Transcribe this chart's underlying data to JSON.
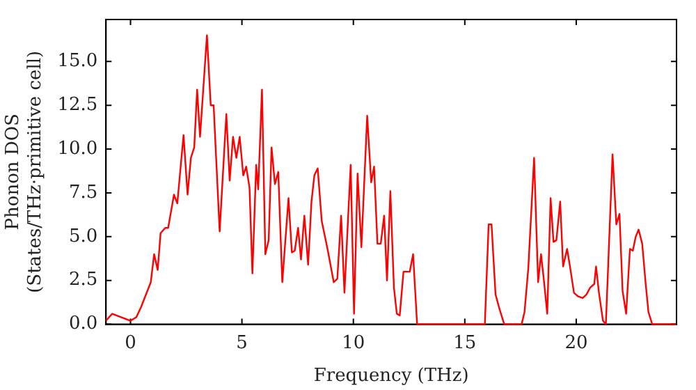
{
  "chart_data": {
    "type": "line",
    "xlabel": "Frequency (THz)",
    "ylabel": "Phonon DOS\n(States/THz·primitive cell)",
    "xlim": [
      -1.1,
      24.5
    ],
    "ylim": [
      0,
      17.4
    ],
    "xticks": [
      0,
      5,
      10,
      15,
      20
    ],
    "yticks": [
      {
        "value": 0,
        "label": "0.0"
      },
      {
        "value": 2.5,
        "label": "2.5"
      },
      {
        "value": 5,
        "label": "5.0"
      },
      {
        "value": 7.5,
        "label": "7.5"
      },
      {
        "value": 10,
        "label": "10.0"
      },
      {
        "value": 12.5,
        "label": "12.5"
      },
      {
        "value": 15,
        "label": "15.0"
      }
    ],
    "grid": false,
    "legend": false,
    "marker": "none",
    "line_style": "solid",
    "series": [
      {
        "color": "#ff0000",
        "x": [
          -1.1,
          -0.82,
          0,
          0.26,
          0.48,
          0.91,
          1.06,
          1.22,
          1.35,
          1.56,
          1.69,
          1.95,
          2.1,
          2.38,
          2.56,
          2.71,
          2.86,
          2.99,
          3.12,
          3.43,
          3.6,
          3.73,
          4.0,
          4.3,
          4.45,
          4.6,
          4.75,
          4.9,
          5.06,
          5.19,
          5.34,
          5.47,
          5.64,
          5.73,
          5.9,
          6.05,
          6.2,
          6.33,
          6.48,
          6.63,
          6.81,
          7.09,
          7.24,
          7.37,
          7.52,
          7.65,
          7.8,
          7.97,
          8.12,
          8.25,
          8.4,
          8.58,
          8.84,
          9.12,
          9.28,
          9.45,
          9.6,
          9.88,
          10.03,
          10.19,
          10.36,
          10.62,
          10.8,
          10.93,
          11.08,
          11.23,
          11.38,
          11.51,
          11.66,
          11.82,
          11.95,
          12.08,
          12.25,
          12.53,
          12.68,
          12.86,
          15.9,
          16.07,
          16.2,
          16.38,
          16.55,
          16.77,
          17.55,
          17.68,
          17.85,
          18.11,
          18.29,
          18.42,
          18.55,
          18.7,
          18.85,
          18.98,
          19.11,
          19.28,
          19.41,
          19.59,
          19.72,
          19.9,
          20.07,
          20.29,
          20.46,
          20.63,
          20.81,
          20.89,
          21.02,
          21.2,
          21.33,
          21.63,
          21.8,
          21.94,
          22.08,
          22.24,
          22.41,
          22.54,
          22.67,
          22.8,
          22.96,
          23.11,
          23.24,
          23.41,
          24.47
        ],
        "values": [
          0.2,
          0.6,
          0.2,
          0.4,
          1.0,
          2.4,
          4.0,
          3.1,
          5.2,
          5.5,
          5.5,
          7.4,
          6.9,
          10.8,
          7.4,
          9.5,
          10.1,
          13.4,
          10.7,
          16.5,
          12.5,
          12.5,
          5.3,
          12.0,
          8.2,
          10.7,
          9.5,
          10.7,
          8.5,
          9.0,
          7.8,
          2.9,
          9.1,
          7.7,
          13.4,
          4.0,
          4.8,
          10.1,
          8.0,
          8.7,
          2.4,
          7.2,
          4.1,
          4.2,
          5.5,
          3.7,
          6.2,
          3.4,
          7.0,
          8.5,
          8.9,
          5.9,
          4.3,
          2.4,
          2.6,
          6.2,
          1.8,
          9.1,
          0.6,
          8.6,
          4.4,
          11.9,
          8.1,
          9.0,
          4.6,
          4.6,
          6.2,
          2.5,
          7.6,
          2.1,
          0.6,
          0.5,
          3.0,
          3.0,
          4.0,
          0,
          0,
          5.7,
          5.7,
          1.7,
          0.9,
          0,
          0,
          0.7,
          3.2,
          9.5,
          2.4,
          4.0,
          2.5,
          0.6,
          7.2,
          4.7,
          4.8,
          7.0,
          3.3,
          4.3,
          3.3,
          1.8,
          1.6,
          1.5,
          1.7,
          2.1,
          2.3,
          3.3,
          1.8,
          0.2,
          0,
          9.7,
          5.7,
          6.3,
          1.9,
          0.6,
          4.3,
          4.2,
          5.0,
          5.4,
          4.6,
          2.4,
          0.7,
          0,
          0
        ]
      }
    ]
  }
}
